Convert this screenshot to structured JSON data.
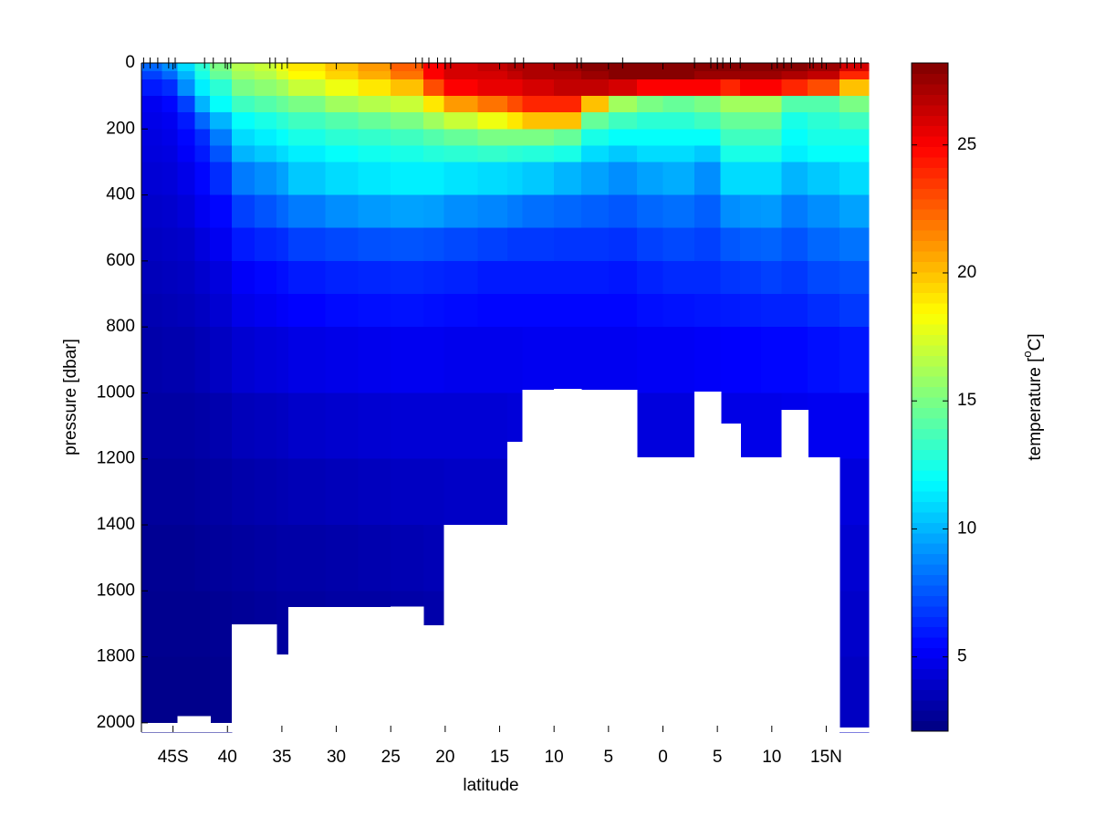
{
  "chart_data": {
    "type": "heatmap",
    "xlabel": "latitude",
    "ylabel": "pressure [dbar]",
    "colorbar_label": [
      "temperature [",
      "o",
      "C]"
    ],
    "colormap": "jet",
    "clim": [
      2.1,
      28.2
    ],
    "cticks": [
      5,
      10,
      15,
      20,
      25
    ],
    "xlim": [
      -47.9,
      18.9
    ],
    "ylim": [
      0,
      2028
    ],
    "y_reversed": true,
    "xticks": [
      {
        "value": -45,
        "label": "45S"
      },
      {
        "value": -40,
        "label": "40"
      },
      {
        "value": -35,
        "label": "35"
      },
      {
        "value": -30,
        "label": "30"
      },
      {
        "value": -25,
        "label": "25"
      },
      {
        "value": -20,
        "label": "20"
      },
      {
        "value": -15,
        "label": "15"
      },
      {
        "value": -10,
        "label": "10"
      },
      {
        "value": -5,
        "label": "5"
      },
      0,
      5,
      10,
      {
        "value": 15,
        "label": "15N"
      }
    ],
    "yticks": [
      0,
      200,
      400,
      600,
      800,
      1000,
      1200,
      1400,
      1600,
      1800,
      2000
    ],
    "stations": [
      -47.7,
      -47.1,
      -46.4,
      -45.4,
      -44.8,
      -42.1,
      -41.3,
      -40.2,
      -39.7,
      -36.1,
      -35.6,
      -34.5,
      -22.7,
      -22.1,
      -21.5,
      -20.7,
      -20.0,
      -19.5,
      -13.6,
      -12.8,
      -7.9,
      -7.5,
      -3.7,
      2.9,
      4.4,
      5.0,
      5.5,
      6.2,
      7.1,
      10.5,
      11.1,
      11.8,
      13.5,
      13.8,
      14.6,
      16.3,
      16.9,
      17.6,
      18.2
    ],
    "xbins": [
      -47.9,
      -46,
      -44.6,
      -43,
      -41.6,
      -39.6,
      -37.5,
      -35.5,
      -34.4,
      -31,
      -28,
      -25,
      -22,
      -20.1,
      -17,
      -14.3,
      -12.9,
      -10,
      -7.5,
      -5,
      -2.4,
      0,
      2.9,
      5.3,
      7.1,
      9,
      10.9,
      13.3,
      16.2,
      18.9
    ],
    "ybins": [
      0,
      25,
      50,
      100,
      150,
      200,
      250,
      300,
      400,
      500,
      600,
      700,
      800,
      1000,
      1200,
      1400,
      1600,
      1800,
      2028
    ],
    "bottom": [
      2000,
      2000,
      1980,
      1980,
      2000,
      1701,
      1701,
      1793,
      1649,
      1649,
      1649,
      1647,
      1704,
      1400,
      1400,
      1148,
      990,
      988,
      990,
      990,
      1195,
      1195,
      996,
      1093,
      1195,
      1195,
      1051,
      1195,
      2014
    ],
    "values": [
      [
        8,
        7,
        6,
        5,
        4.8,
        4.6,
        4.5,
        4.3,
        4,
        3.8,
        3.6,
        3.4,
        3.2,
        3,
        2.8,
        2.6,
        2.5,
        2.4
      ],
      [
        9,
        8,
        6.5,
        5.5,
        5,
        4.8,
        4.6,
        4.4,
        4.1,
        3.9,
        3.7,
        3.5,
        3.3,
        3,
        2.8,
        2.6,
        2.5,
        2.4
      ],
      [
        11,
        10,
        9,
        7,
        6,
        5.5,
        5.2,
        4.8,
        4.4,
        4,
        3.8,
        3.6,
        3.3,
        3,
        2.8,
        2.6,
        2.5,
        2.4
      ],
      [
        13,
        12.5,
        11.5,
        10,
        8,
        6.5,
        6,
        5.5,
        5,
        4.5,
        4.1,
        3.8,
        3.5,
        3.1,
        2.9,
        2.7,
        2.5,
        2.4
      ],
      [
        15,
        14.5,
        13,
        12,
        10,
        8.5,
        7.5,
        6.5,
        5.5,
        5,
        4.5,
        4.2,
        3.8,
        3.3,
        3,
        2.8,
        2.6,
        2.5
      ],
      [
        16.5,
        16,
        15,
        13.5,
        12,
        11,
        10,
        8.5,
        7,
        6,
        5.2,
        4.8,
        4.2,
        3.6,
        3.2,
        2.9,
        2.7,
        null
      ],
      [
        17,
        16.5,
        15.5,
        14,
        12.5,
        11.5,
        10.5,
        9,
        7.5,
        6.3,
        5.5,
        5,
        4.4,
        3.7,
        3.3,
        3,
        2.8,
        null
      ],
      [
        18,
        17.5,
        16,
        14.5,
        13,
        12,
        11,
        9.5,
        8,
        6.5,
        5.7,
        5.2,
        4.5,
        3.8,
        3.4,
        3.1,
        2.9,
        null
      ],
      [
        19,
        18.5,
        17,
        15,
        13.5,
        12.5,
        11.5,
        10.5,
        8.5,
        7,
        6,
        5.4,
        4.7,
        4,
        3.5,
        3.1,
        2.9,
        null
      ],
      [
        20,
        19.5,
        18,
        16,
        14,
        13,
        12,
        11,
        9,
        7.2,
        6.2,
        5.6,
        4.8,
        4.1,
        3.6,
        3.2,
        3,
        null
      ],
      [
        21,
        20.5,
        19,
        16.5,
        14.5,
        13.2,
        12.3,
        11.3,
        9.3,
        7.4,
        6.3,
        5.7,
        4.9,
        4.2,
        3.7,
        3.3,
        3,
        null
      ],
      [
        22.5,
        22,
        20,
        17,
        15,
        13.5,
        12.5,
        11.5,
        9.5,
        7.5,
        6.4,
        5.8,
        5,
        4.3,
        3.8,
        3.4,
        3.1,
        null
      ],
      [
        25,
        25,
        23,
        19,
        16,
        14,
        12.8,
        11.5,
        9.4,
        7.4,
        6.3,
        5.7,
        5,
        4.3,
        3.8,
        3.5,
        3.2,
        null
      ],
      [
        26,
        26,
        25,
        21,
        17,
        14.5,
        13,
        11.2,
        9,
        7.2,
        6.2,
        5.6,
        4.9,
        4.3,
        3.9,
        null,
        null,
        null
      ],
      [
        26.5,
        26,
        25.5,
        22,
        18,
        15,
        13.2,
        11,
        8.8,
        7,
        6,
        5.5,
        4.9,
        4.3,
        3.9,
        null,
        null,
        null
      ],
      [
        27,
        26.5,
        25.5,
        23,
        19,
        15,
        13,
        10.8,
        8.5,
        6.8,
        6,
        5.5,
        4.9,
        4.4,
        null,
        null,
        null,
        null
      ],
      [
        27,
        27,
        26,
        24,
        20,
        15,
        12.8,
        10.5,
        8.2,
        6.8,
        6,
        5.5,
        5,
        null,
        null,
        null,
        null,
        null
      ],
      [
        27.5,
        27,
        26.5,
        24,
        20,
        14.5,
        12.5,
        10,
        8,
        6.7,
        6,
        5.5,
        5,
        null,
        null,
        null,
        null,
        null
      ],
      [
        28,
        27.5,
        26.5,
        20,
        14.5,
        12.5,
        11,
        9.5,
        7.8,
        6.7,
        6,
        5.5,
        5,
        null,
        null,
        null,
        null,
        null
      ],
      [
        28,
        28,
        26,
        16,
        13.5,
        12,
        10.5,
        9,
        7.6,
        6.6,
        5.9,
        5.5,
        5,
        null,
        null,
        null,
        null,
        null
      ],
      [
        28,
        28,
        25,
        15,
        13,
        12,
        11,
        9.5,
        8,
        7,
        6.2,
        5.7,
        5.1,
        4.5,
        null,
        null,
        null,
        null
      ],
      [
        28,
        28,
        25,
        14.5,
        13,
        12,
        11,
        9.8,
        8.2,
        7.2,
        6.4,
        5.8,
        5.1,
        4.5,
        null,
        null,
        null,
        null
      ],
      [
        28,
        27.5,
        25,
        15,
        13.5,
        12,
        10.5,
        9,
        7.8,
        7,
        6.4,
        5.9,
        5.2,
        null,
        null,
        null,
        null,
        null
      ],
      [
        28,
        27.5,
        24,
        16,
        14.5,
        13.5,
        12.5,
        11,
        9,
        7.6,
        6.7,
        6,
        5.3,
        4.7,
        null,
        null,
        null,
        null
      ],
      [
        28,
        27.5,
        25,
        16,
        14.5,
        13.5,
        12.5,
        11,
        9.2,
        7.8,
        6.8,
        6.1,
        5.4,
        4.8,
        null,
        null,
        null,
        null
      ],
      [
        28,
        27.5,
        25,
        16,
        14.5,
        13.5,
        12.5,
        11,
        9.3,
        7.9,
        7,
        6.2,
        5.5,
        4.8,
        null,
        null,
        null,
        null
      ],
      [
        28,
        27,
        24,
        14,
        12.5,
        12,
        11.5,
        10,
        8.5,
        7.5,
        6.8,
        6.2,
        5.5,
        4.9,
        null,
        null,
        null,
        null
      ],
      [
        27.5,
        26.5,
        23,
        14,
        13,
        12.5,
        12,
        10.5,
        9,
        8,
        7.2,
        6.5,
        5.7,
        5,
        null,
        null,
        null,
        null
      ],
      [
        26,
        24,
        20,
        15,
        13.5,
        12.5,
        12,
        11,
        9.5,
        8.3,
        7.4,
        6.8,
        5.9,
        5,
        4.5,
        4.2,
        4,
        3.8
      ]
    ]
  }
}
